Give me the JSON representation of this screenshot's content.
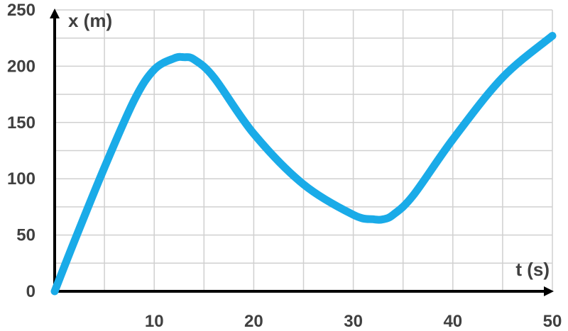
{
  "chart_data": {
    "type": "line",
    "xlabel": "t (s)",
    "ylabel": "x (m)",
    "xlim": [
      0,
      50
    ],
    "ylim": [
      0,
      250
    ],
    "x_ticks": [
      10,
      20,
      30,
      40,
      50
    ],
    "y_ticks": [
      0,
      50,
      100,
      150,
      200,
      250
    ],
    "grid": true,
    "colors": {
      "series": "#1aabe8",
      "axis": "#000000",
      "grid": "#d0d0d0",
      "text": "#404040"
    },
    "series": [
      {
        "x": [
          0,
          2,
          5,
          8,
          10,
          12,
          13,
          14,
          16,
          20,
          25,
          30,
          32,
          33,
          34,
          36,
          40,
          45,
          50
        ],
        "y": [
          0,
          45,
          110,
          170,
          197,
          207,
          208,
          206,
          190,
          140,
          95,
          68,
          64,
          64,
          68,
          85,
          135,
          190,
          227
        ]
      }
    ]
  }
}
